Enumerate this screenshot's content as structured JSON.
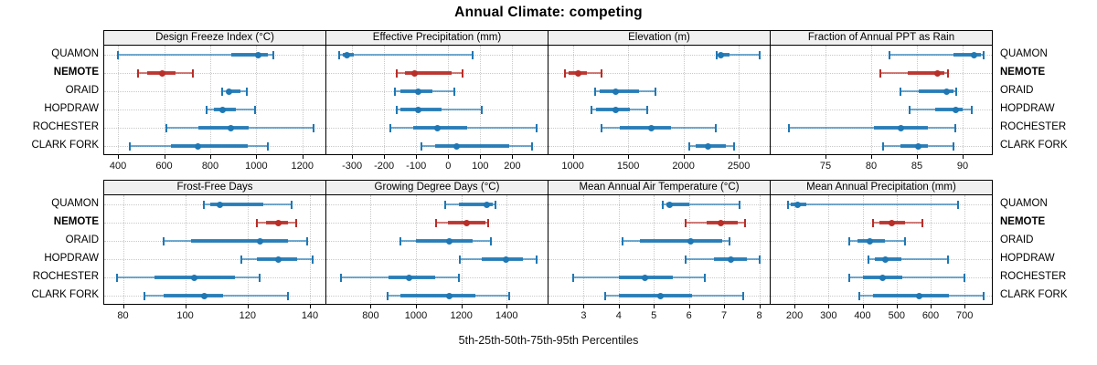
{
  "title": "Annual Climate: competing",
  "axis_caption": "5th-25th-50th-75th-95th Percentiles",
  "colors": {
    "series": "#1f78b4",
    "highlight_series": "#b82e28",
    "header_bg": "#f0f0f0",
    "grid": "#c9c9c9",
    "border": "#000000"
  },
  "stations": [
    {
      "label": "QUAMON",
      "highlight": false
    },
    {
      "label": "NEMOTE",
      "highlight": true
    },
    {
      "label": "ORAID",
      "highlight": false
    },
    {
      "label": "HOPDRAW",
      "highlight": false
    },
    {
      "label": "ROCHESTER",
      "highlight": false
    },
    {
      "label": "CLARK FORK",
      "highlight": false
    }
  ],
  "chart_data": [
    {
      "type": "dotplot",
      "title": "Design Freeze Index (°C)",
      "grid_pos": {
        "row": 0,
        "col": 0
      },
      "xlim": [
        340,
        1300
      ],
      "ticks": [
        400,
        600,
        800,
        1000,
        1200
      ],
      "percentile_levels": [
        5,
        25,
        50,
        75,
        95
      ],
      "series": [
        {
          "station": "QUAMON",
          "values": [
            400,
            890,
            1010,
            1050,
            1075
          ]
        },
        {
          "station": "NEMOTE",
          "values": [
            485,
            525,
            590,
            650,
            725
          ]
        },
        {
          "station": "ORAID",
          "values": [
            850,
            870,
            880,
            930,
            960
          ]
        },
        {
          "station": "HOPDRAW",
          "values": [
            785,
            815,
            855,
            910,
            995
          ]
        },
        {
          "station": "ROCHESTER",
          "values": [
            610,
            750,
            890,
            965,
            1250
          ]
        },
        {
          "station": "CLARK FORK",
          "values": [
            450,
            630,
            745,
            965,
            1050
          ]
        }
      ]
    },
    {
      "type": "dotplot",
      "title": "Effective Precipitation (mm)",
      "grid_pos": {
        "row": 0,
        "col": 1
      },
      "xlim": [
        -380,
        310
      ],
      "ticks": [
        -300,
        -200,
        -100,
        0,
        100,
        200
      ],
      "percentile_levels": [
        5,
        25,
        50,
        75,
        95
      ],
      "series": [
        {
          "station": "QUAMON",
          "values": [
            -340,
            -330,
            -315,
            -295,
            75
          ]
        },
        {
          "station": "NEMOTE",
          "values": [
            -160,
            -135,
            -105,
            10,
            45
          ]
        },
        {
          "station": "ORAID",
          "values": [
            -165,
            -150,
            -95,
            -50,
            20
          ]
        },
        {
          "station": "HOPDRAW",
          "values": [
            -160,
            -148,
            -95,
            -20,
            105
          ]
        },
        {
          "station": "ROCHESTER",
          "values": [
            -180,
            -110,
            -35,
            60,
            275
          ]
        },
        {
          "station": "CLARK FORK",
          "values": [
            -85,
            -40,
            25,
            190,
            260
          ]
        }
      ]
    },
    {
      "type": "dotplot",
      "title": "Elevation (m)",
      "grid_pos": {
        "row": 0,
        "col": 2
      },
      "xlim": [
        780,
        2780
      ],
      "ticks": [
        1000,
        1500,
        2000,
        2500
      ],
      "percentile_levels": [
        5,
        25,
        50,
        75,
        95
      ],
      "series": [
        {
          "station": "QUAMON",
          "values": [
            2300,
            2315,
            2340,
            2420,
            2685
          ]
        },
        {
          "station": "NEMOTE",
          "values": [
            925,
            960,
            1045,
            1125,
            1255
          ]
        },
        {
          "station": "ORAID",
          "values": [
            1200,
            1240,
            1390,
            1600,
            1750
          ]
        },
        {
          "station": "HOPDRAW",
          "values": [
            1170,
            1210,
            1390,
            1515,
            1670
          ]
        },
        {
          "station": "ROCHESTER",
          "values": [
            1255,
            1425,
            1710,
            1885,
            2290
          ]
        },
        {
          "station": "CLARK FORK",
          "values": [
            2050,
            2110,
            2225,
            2385,
            2460
          ]
        }
      ]
    },
    {
      "type": "dotplot",
      "title": "Fraction of Annual PPT as Rain",
      "grid_pos": {
        "row": 0,
        "col": 3
      },
      "xlim": [
        69,
        93.2
      ],
      "ticks": [
        75,
        80,
        85,
        90
      ],
      "percentile_levels": [
        5,
        25,
        50,
        75,
        95
      ],
      "series": [
        {
          "station": "QUAMON",
          "values": [
            82,
            89,
            91.2,
            92,
            92.3
          ]
        },
        {
          "station": "NEMOTE",
          "values": [
            81,
            84,
            87.2,
            88,
            88.4
          ]
        },
        {
          "station": "ORAID",
          "values": [
            83.2,
            85.2,
            88.2,
            89,
            89.3
          ]
        },
        {
          "station": "HOPDRAW",
          "values": [
            84.2,
            87,
            89.2,
            90,
            91
          ]
        },
        {
          "station": "ROCHESTER",
          "values": [
            71,
            80.3,
            83.2,
            86.2,
            89.2
          ]
        },
        {
          "station": "CLARK FORK",
          "values": [
            81.3,
            83.2,
            85.1,
            86.2,
            89
          ]
        }
      ]
    },
    {
      "type": "dotplot",
      "title": "Frost-Free Days",
      "grid_pos": {
        "row": 1,
        "col": 0
      },
      "xlim": [
        74,
        145
      ],
      "ticks": [
        80,
        100,
        120,
        140
      ],
      "percentile_levels": [
        5,
        25,
        50,
        75,
        95
      ],
      "series": [
        {
          "station": "QUAMON",
          "values": [
            106,
            108,
            111,
            125,
            134
          ]
        },
        {
          "station": "NEMOTE",
          "values": [
            123,
            126,
            130,
            133,
            135.5
          ]
        },
        {
          "station": "ORAID",
          "values": [
            93,
            102,
            124,
            133,
            139
          ]
        },
        {
          "station": "HOPDRAW",
          "values": [
            118,
            123,
            130,
            136,
            141
          ]
        },
        {
          "station": "ROCHESTER",
          "values": [
            78,
            90,
            103,
            116,
            124
          ]
        },
        {
          "station": "CLARK FORK",
          "values": [
            87,
            93,
            106,
            112,
            133
          ]
        }
      ]
    },
    {
      "type": "dotplot",
      "title": "Growing Degree Days (°C)",
      "grid_pos": {
        "row": 1,
        "col": 1
      },
      "xlim": [
        605,
        1580
      ],
      "ticks": [
        800,
        1000,
        1200,
        1400
      ],
      "percentile_levels": [
        5,
        25,
        50,
        75,
        95
      ],
      "series": [
        {
          "station": "QUAMON",
          "values": [
            1130,
            1190,
            1310,
            1340,
            1350
          ]
        },
        {
          "station": "NEMOTE",
          "values": [
            1090,
            1140,
            1225,
            1305,
            1318
          ]
        },
        {
          "station": "ORAID",
          "values": [
            930,
            1000,
            1145,
            1250,
            1330
          ]
        },
        {
          "station": "HOPDRAW",
          "values": [
            1195,
            1290,
            1395,
            1470,
            1530
          ]
        },
        {
          "station": "ROCHESTER",
          "values": [
            670,
            880,
            970,
            1085,
            1190
          ]
        },
        {
          "station": "CLARK FORK",
          "values": [
            875,
            930,
            1145,
            1260,
            1410
          ]
        }
      ]
    },
    {
      "type": "dotplot",
      "title": "Mean Annual Air Temperature (°C)",
      "grid_pos": {
        "row": 1,
        "col": 2
      },
      "xlim": [
        2.0,
        8.3
      ],
      "ticks": [
        3,
        4,
        5,
        6,
        7,
        8
      ],
      "percentile_levels": [
        5,
        25,
        50,
        75,
        95
      ],
      "series": [
        {
          "station": "QUAMON",
          "values": [
            5.25,
            5.35,
            5.45,
            6.0,
            7.45
          ]
        },
        {
          "station": "NEMOTE",
          "values": [
            5.9,
            6.5,
            6.9,
            7.4,
            7.6
          ]
        },
        {
          "station": "ORAID",
          "values": [
            4.1,
            4.6,
            6.05,
            6.95,
            7.15
          ]
        },
        {
          "station": "HOPDRAW",
          "values": [
            5.9,
            6.7,
            7.2,
            7.65,
            8.0
          ]
        },
        {
          "station": "ROCHESTER",
          "values": [
            2.7,
            4.0,
            4.75,
            5.55,
            6.45
          ]
        },
        {
          "station": "CLARK FORK",
          "values": [
            3.6,
            4.0,
            5.2,
            6.1,
            7.55
          ]
        }
      ]
    },
    {
      "type": "dotplot",
      "title": "Mean Annual Precipitation (mm)",
      "grid_pos": {
        "row": 1,
        "col": 3
      },
      "xlim": [
        130,
        780
      ],
      "ticks": [
        200,
        300,
        400,
        500,
        600,
        700
      ],
      "percentile_levels": [
        5,
        25,
        50,
        75,
        95
      ],
      "series": [
        {
          "station": "QUAMON",
          "values": [
            180,
            190,
            210,
            235,
            680
          ]
        },
        {
          "station": "NEMOTE",
          "values": [
            430,
            450,
            485,
            525,
            575
          ]
        },
        {
          "station": "ORAID",
          "values": [
            360,
            385,
            420,
            465,
            525
          ]
        },
        {
          "station": "HOPDRAW",
          "values": [
            418,
            435,
            467,
            515,
            650
          ]
        },
        {
          "station": "ROCHESTER",
          "values": [
            360,
            400,
            460,
            518,
            700
          ]
        },
        {
          "station": "CLARK FORK",
          "values": [
            390,
            430,
            565,
            655,
            755
          ]
        }
      ]
    }
  ]
}
